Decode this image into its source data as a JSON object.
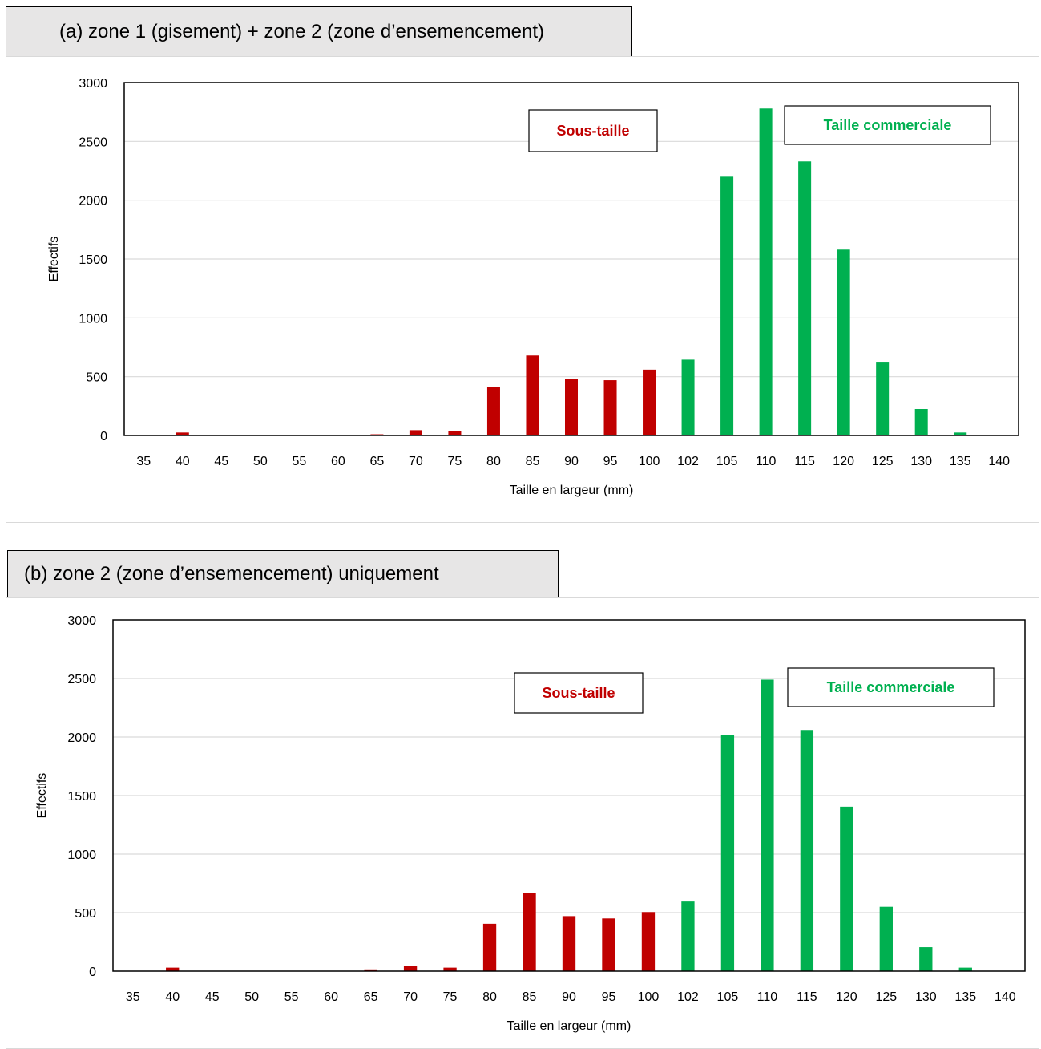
{
  "colors": {
    "undersize": "#c00000",
    "commercial": "#00b050",
    "grid": "#d9d9d9",
    "plot_border": "#000000",
    "title_bg": "#e7e6e6"
  },
  "chart_data": [
    {
      "type": "bar",
      "title": "(a)  zone 1 (gisement) + zone 2 (zone d’ensemencement)",
      "categories": [
        "35",
        "40",
        "45",
        "50",
        "55",
        "60",
        "65",
        "70",
        "75",
        "80",
        "85",
        "90",
        "95",
        "100",
        "102",
        "105",
        "110",
        "115",
        "120",
        "125",
        "130",
        "135",
        "140"
      ],
      "values": [
        0,
        25,
        0,
        0,
        0,
        0,
        10,
        45,
        40,
        415,
        680,
        480,
        470,
        560,
        645,
        2200,
        2780,
        2330,
        1580,
        620,
        225,
        25,
        0
      ],
      "bar_colors": [
        "undersize",
        "undersize",
        "undersize",
        "undersize",
        "undersize",
        "undersize",
        "undersize",
        "undersize",
        "undersize",
        "undersize",
        "undersize",
        "undersize",
        "undersize",
        "undersize",
        "commercial",
        "commercial",
        "commercial",
        "commercial",
        "commercial",
        "commercial",
        "commercial",
        "commercial",
        "commercial"
      ],
      "xlabel": "Taille en largeur (mm)",
      "ylabel": "Effectifs",
      "ylim": [
        0,
        3000
      ],
      "yticks": [
        "0",
        "500",
        "1000",
        "1500",
        "2000",
        "2500",
        "3000"
      ],
      "grid": true,
      "annotations": {
        "undersize": "Sous-taille",
        "commercial": "Taille commerciale"
      }
    },
    {
      "type": "bar",
      "title": "(b) zone 2 (zone d’ensemencement) uniquement",
      "categories": [
        "35",
        "40",
        "45",
        "50",
        "55",
        "60",
        "65",
        "70",
        "75",
        "80",
        "85",
        "90",
        "95",
        "100",
        "102",
        "105",
        "110",
        "115",
        "120",
        "125",
        "130",
        "135",
        "140"
      ],
      "values": [
        0,
        30,
        0,
        0,
        0,
        0,
        15,
        45,
        30,
        405,
        665,
        470,
        450,
        505,
        595,
        2020,
        2490,
        2060,
        1405,
        550,
        205,
        30,
        0
      ],
      "bar_colors": [
        "undersize",
        "undersize",
        "undersize",
        "undersize",
        "undersize",
        "undersize",
        "undersize",
        "undersize",
        "undersize",
        "undersize",
        "undersize",
        "undersize",
        "undersize",
        "undersize",
        "commercial",
        "commercial",
        "commercial",
        "commercial",
        "commercial",
        "commercial",
        "commercial",
        "commercial",
        "commercial"
      ],
      "xlabel": "Taille en largeur (mm)",
      "ylabel": "Effectifs",
      "ylim": [
        0,
        3000
      ],
      "yticks": [
        "0",
        "500",
        "1000",
        "1500",
        "2000",
        "2500",
        "3000"
      ],
      "grid": true,
      "annotations": {
        "undersize": "Sous-taille",
        "commercial": "Taille commerciale"
      }
    }
  ]
}
